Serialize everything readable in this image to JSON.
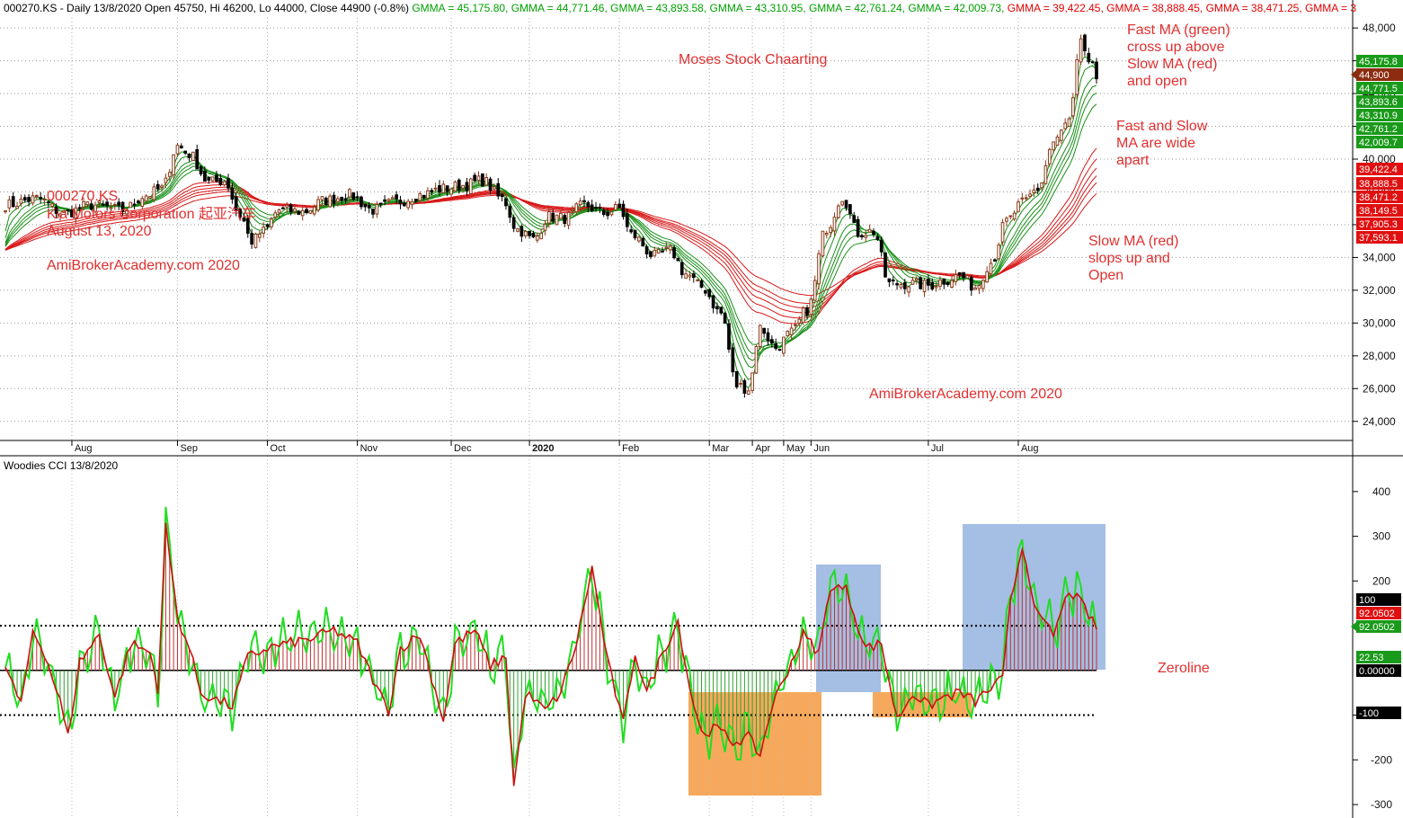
{
  "header": {
    "segments": [
      {
        "text": "000270.KS - Daily 13/8/2020 Open 45750, Hi 46200, Lo 44000, Close 44900 (-0.8%) ",
        "color": "#000000"
      },
      {
        "text": "GMMA = 45,175.80, ",
        "color": "#00a000"
      },
      {
        "text": "GMMA = 44,771.46, ",
        "color": "#00a000"
      },
      {
        "text": "GMMA = 43,893.58, ",
        "color": "#00a000"
      },
      {
        "text": "GMMA = 43,310.95, ",
        "color": "#00a000"
      },
      {
        "text": "GMMA = 42,761.24, ",
        "color": "#00a000"
      },
      {
        "text": "GMMA = 42,009.73, ",
        "color": "#00a000"
      },
      {
        "text": "GMMA = 39,422.45, ",
        "color": "#e00000"
      },
      {
        "text": "GMMA = 38,888.45, ",
        "color": "#e00000"
      },
      {
        "text": "GMMA = 38,471.25, ",
        "color": "#e00000"
      },
      {
        "text": "GMMA = 3",
        "color": "#e00000"
      }
    ]
  },
  "annotations": {
    "center_title": "Moses Stock Chaarting",
    "ticker": "000270.KS",
    "company": "Kia Motors Corporation 起亚汽车",
    "date": "August 13, 2020",
    "site1": "AmiBrokerAcademy.com  2020",
    "site2": "AmiBrokerAcademy.com 2020",
    "fast_cross": [
      "Fast MA (green)",
      "cross up above",
      "Slow MA (red)",
      "and open"
    ],
    "wide_apart": [
      "Fast and Slow",
      "MA are wide",
      "apart"
    ],
    "slow_slope": [
      "Slow MA (red)",
      "slops up and",
      "Open"
    ],
    "zeroline": "Zeroline"
  },
  "indicator_title": "Woodies CCI   13/8/2020",
  "price_labels": [
    {
      "text": "45,175.8",
      "color": "#1a9a1a"
    },
    {
      "text": "44,900",
      "color": "#8b2c10"
    },
    {
      "text": "44,771.5",
      "color": "#1a9a1a"
    },
    {
      "text": "43,893.6",
      "color": "#1a9a1a"
    },
    {
      "text": "43,310.9",
      "color": "#1a9a1a"
    },
    {
      "text": "42,761.2",
      "color": "#1a9a1a"
    },
    {
      "text": "42,009.7",
      "color": "#1a9a1a"
    },
    {
      "text": "39,422.4",
      "color": "#e01010"
    },
    {
      "text": "38,888.5",
      "color": "#e01010"
    },
    {
      "text": "38,471.2",
      "color": "#e01010"
    },
    {
      "text": "38,149.5",
      "color": "#e01010"
    },
    {
      "text": "37,905.3",
      "color": "#e01010"
    },
    {
      "text": "37,593.1",
      "color": "#e01010"
    }
  ],
  "cci_labels": [
    {
      "text": "100",
      "color": "#000000"
    },
    {
      "text": "92.0502",
      "color": "#e01010"
    },
    {
      "text": "92.0502",
      "color": "#1a9a1a"
    },
    {
      "text": "22.53",
      "color": "#1a9a1a"
    },
    {
      "text": "0.00000",
      "color": "#000000"
    },
    {
      "text": "-100",
      "color": "#000000"
    }
  ],
  "chart_data": [
    {
      "type": "candlestick",
      "name": "000270.KS",
      "x_ticks": [
        "Aug",
        "Sep",
        "Oct",
        "Nov",
        "Dec",
        "2020",
        "Feb",
        "Mar",
        "Apr",
        "May",
        "Jun",
        "Jul",
        "Aug"
      ],
      "y_ticks": [
        24000,
        26000,
        28000,
        30000,
        32000,
        34000,
        36000,
        38000,
        40000,
        42000,
        44000,
        46000,
        48000
      ],
      "y_tick_labels": [
        "24,000",
        "26,000",
        "28,000",
        "30,000",
        "32,000",
        "34,000",
        "36,000",
        "38,000",
        "40,000",
        "42,000",
        "44,000",
        "46,000",
        "48,000"
      ],
      "ylim": [
        23000,
        48500
      ],
      "grid": true,
      "close_path": [
        [
          0,
          37200
        ],
        [
          8,
          37600
        ],
        [
          15,
          36700
        ],
        [
          22,
          37200
        ],
        [
          30,
          36900
        ],
        [
          36,
          37800
        ],
        [
          40,
          38200
        ],
        [
          44,
          40800
        ],
        [
          47,
          40300
        ],
        [
          52,
          38600
        ],
        [
          56,
          38700
        ],
        [
          60,
          36600
        ],
        [
          63,
          35000
        ],
        [
          66,
          35600
        ],
        [
          70,
          36900
        ],
        [
          76,
          36800
        ],
        [
          82,
          37500
        ],
        [
          88,
          37800
        ],
        [
          94,
          36900
        ],
        [
          100,
          37400
        ],
        [
          106,
          37800
        ],
        [
          112,
          38200
        ],
        [
          117,
          38400
        ],
        [
          122,
          38700
        ],
        [
          127,
          37600
        ],
        [
          131,
          35700
        ],
        [
          135,
          35100
        ],
        [
          139,
          36500
        ],
        [
          143,
          36400
        ],
        [
          148,
          37200
        ],
        [
          153,
          36700
        ],
        [
          157,
          37000
        ],
        [
          160,
          35400
        ],
        [
          166,
          34100
        ],
        [
          170,
          34400
        ],
        [
          174,
          33000
        ],
        [
          178,
          32200
        ],
        [
          183,
          30600
        ],
        [
          187,
          26200
        ],
        [
          190,
          26000
        ],
        [
          193,
          29700
        ],
        [
          197,
          28500
        ],
        [
          201,
          29400
        ],
        [
          205,
          30800
        ],
        [
          210,
          35800
        ],
        [
          214,
          37700
        ],
        [
          218,
          35500
        ],
        [
          222,
          35600
        ],
        [
          226,
          32400
        ],
        [
          231,
          32400
        ],
        [
          236,
          32300
        ],
        [
          240,
          32600
        ],
        [
          244,
          32900
        ],
        [
          248,
          32200
        ],
        [
          252,
          33700
        ],
        [
          256,
          36200
        ],
        [
          260,
          37300
        ],
        [
          264,
          38200
        ],
        [
          268,
          41000
        ],
        [
          272,
          42300
        ],
        [
          275,
          47000
        ],
        [
          278,
          45600
        ],
        [
          279,
          44900
        ]
      ],
      "ema_periods_fast": [
        3,
        5,
        8,
        10,
        12,
        15
      ],
      "ema_periods_slow": [
        30,
        35,
        40,
        45,
        50,
        60
      ],
      "last_close": 44900
    },
    {
      "type": "line",
      "name": "Woodies CCI",
      "y_ticks": [
        -300,
        -200,
        -100,
        100,
        200,
        300,
        400
      ],
      "ylim": [
        -320,
        470
      ],
      "reference_lines": [
        -100,
        0,
        100
      ],
      "peaks": [
        [
          0,
          10
        ],
        [
          4,
          -80
        ],
        [
          7,
          90
        ],
        [
          10,
          40
        ],
        [
          14,
          -70
        ],
        [
          16,
          -150
        ],
        [
          19,
          20
        ],
        [
          24,
          80
        ],
        [
          28,
          -60
        ],
        [
          32,
          60
        ],
        [
          37,
          40
        ],
        [
          39,
          -40
        ],
        [
          41,
          320
        ],
        [
          44,
          120
        ],
        [
          47,
          50
        ],
        [
          50,
          -50
        ],
        [
          55,
          -70
        ],
        [
          58,
          -80
        ],
        [
          62,
          30
        ],
        [
          67,
          50
        ],
        [
          72,
          60
        ],
        [
          78,
          70
        ],
        [
          84,
          90
        ],
        [
          90,
          60
        ],
        [
          95,
          -40
        ],
        [
          98,
          -90
        ],
        [
          101,
          50
        ],
        [
          106,
          80
        ],
        [
          112,
          -110
        ],
        [
          115,
          60
        ],
        [
          120,
          90
        ],
        [
          124,
          10
        ],
        [
          128,
          30
        ],
        [
          130,
          -260
        ],
        [
          133,
          -50
        ],
        [
          138,
          -90
        ],
        [
          142,
          -50
        ],
        [
          146,
          60
        ],
        [
          150,
          230
        ],
        [
          154,
          20
        ],
        [
          158,
          -120
        ],
        [
          161,
          40
        ],
        [
          164,
          -50
        ],
        [
          168,
          40
        ],
        [
          172,
          110
        ],
        [
          175,
          -40
        ],
        [
          178,
          -140
        ],
        [
          182,
          -130
        ],
        [
          186,
          -160
        ],
        [
          190,
          -150
        ],
        [
          193,
          -190
        ],
        [
          196,
          -80
        ],
        [
          200,
          0
        ],
        [
          204,
          80
        ],
        [
          208,
          40
        ],
        [
          211,
          190
        ],
        [
          215,
          180
        ],
        [
          220,
          50
        ],
        [
          224,
          60
        ],
        [
          228,
          -110
        ],
        [
          232,
          -50
        ],
        [
          236,
          -80
        ],
        [
          240,
          -60
        ],
        [
          244,
          -50
        ],
        [
          248,
          -70
        ],
        [
          252,
          -40
        ],
        [
          255,
          -20
        ],
        [
          257,
          150
        ],
        [
          260,
          280
        ],
        [
          264,
          120
        ],
        [
          268,
          80
        ],
        [
          272,
          180
        ],
        [
          276,
          140
        ],
        [
          279,
          92
        ]
      ],
      "last_value": 92.0502,
      "sub_label": "22.53"
    }
  ]
}
